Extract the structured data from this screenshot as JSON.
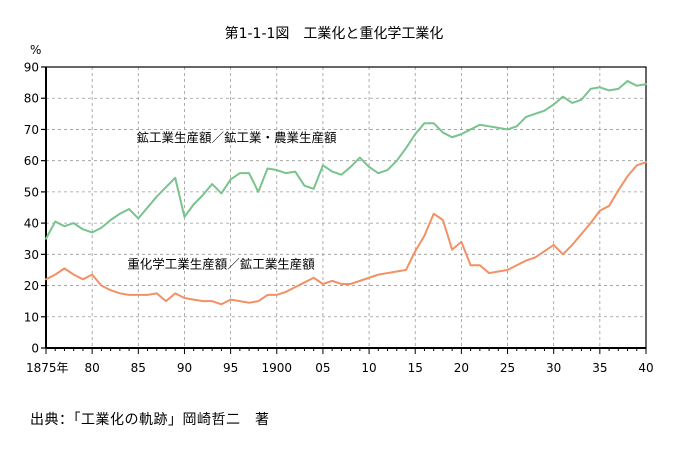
{
  "title": "第1-1-1図　工業化と重化学工業化",
  "source": "出典：「工業化の軌跡」岡崎哲二　著",
  "chart_data": {
    "type": "line",
    "title": "第1-1-1図　工業化と重化学工業化",
    "ylabel": "%",
    "xlabel": "",
    "ylim": [
      0,
      90
    ],
    "xlim": [
      1875,
      1940
    ],
    "grid": true,
    "y_ticks": [
      0,
      10,
      20,
      30,
      40,
      50,
      60,
      70,
      80,
      90
    ],
    "x_ticks": [
      {
        "x": 1875,
        "label": "1875年"
      },
      {
        "x": 1880,
        "label": "80"
      },
      {
        "x": 1885,
        "label": "85"
      },
      {
        "x": 1890,
        "label": "90"
      },
      {
        "x": 1895,
        "label": "95"
      },
      {
        "x": 1900,
        "label": "1900"
      },
      {
        "x": 1905,
        "label": "05"
      },
      {
        "x": 1910,
        "label": "10"
      },
      {
        "x": 1915,
        "label": "15"
      },
      {
        "x": 1920,
        "label": "20"
      },
      {
        "x": 1925,
        "label": "25"
      },
      {
        "x": 1930,
        "label": "30"
      },
      {
        "x": 1935,
        "label": "35"
      },
      {
        "x": 1940,
        "label": "40"
      }
    ],
    "series": [
      {
        "name": "鉱工業生産額／鉱工業・農業生産額",
        "color": "#78c48c",
        "x": [
          1875,
          1876,
          1877,
          1878,
          1879,
          1880,
          1881,
          1882,
          1883,
          1884,
          1885,
          1886,
          1887,
          1888,
          1889,
          1890,
          1891,
          1892,
          1893,
          1894,
          1895,
          1896,
          1897,
          1898,
          1899,
          1900,
          1901,
          1902,
          1903,
          1904,
          1905,
          1906,
          1907,
          1908,
          1909,
          1910,
          1911,
          1912,
          1913,
          1914,
          1915,
          1916,
          1917,
          1918,
          1919,
          1920,
          1921,
          1922,
          1923,
          1924,
          1925,
          1926,
          1927,
          1928,
          1929,
          1930,
          1931,
          1932,
          1933,
          1934,
          1935,
          1936,
          1937,
          1938,
          1939,
          1940
        ],
        "values": [
          35,
          40.5,
          39,
          40,
          38,
          37,
          38.5,
          41,
          43,
          44.5,
          41.5,
          45,
          48.5,
          51.5,
          54.5,
          42,
          46,
          49,
          52.5,
          49.5,
          54,
          56,
          56,
          50,
          57.5,
          57,
          56,
          56.5,
          52,
          51,
          58.5,
          56.5,
          55.5,
          58,
          61,
          58,
          56,
          57,
          60,
          64,
          68.5,
          72,
          72,
          69,
          67.5,
          68.5,
          70,
          71.5,
          71,
          70.5,
          70,
          71,
          74,
          75,
          76,
          78,
          80.5,
          78.5,
          79.5,
          83,
          83.5,
          82.5,
          83,
          85.5,
          84,
          84.5
        ]
      },
      {
        "name": "重化学工業生産額／鉱工業生産額",
        "color": "#f39166",
        "x": [
          1875,
          1876,
          1877,
          1878,
          1879,
          1880,
          1881,
          1882,
          1883,
          1884,
          1885,
          1886,
          1887,
          1888,
          1889,
          1890,
          1891,
          1892,
          1893,
          1894,
          1895,
          1896,
          1897,
          1898,
          1899,
          1900,
          1901,
          1902,
          1903,
          1904,
          1905,
          1906,
          1907,
          1908,
          1909,
          1910,
          1911,
          1912,
          1913,
          1914,
          1915,
          1916,
          1917,
          1918,
          1919,
          1920,
          1921,
          1922,
          1923,
          1924,
          1925,
          1926,
          1927,
          1928,
          1929,
          1930,
          1931,
          1932,
          1933,
          1934,
          1935,
          1936,
          1937,
          1938,
          1939,
          1940
        ],
        "values": [
          22,
          23.5,
          25.5,
          23.5,
          22,
          23.5,
          20,
          18.5,
          17.5,
          17,
          17,
          17,
          17.5,
          15,
          17.5,
          16,
          15.5,
          15,
          15,
          14,
          15.5,
          15,
          14.5,
          15,
          17,
          17,
          18,
          19.5,
          21,
          22.5,
          20.5,
          21.5,
          20.5,
          20.5,
          21.5,
          22.5,
          23.5,
          24,
          24.5,
          25,
          31,
          36,
          43,
          41,
          31.5,
          34,
          26.5,
          26.5,
          24,
          24.5,
          25,
          26.5,
          28,
          29,
          31,
          33,
          30,
          33,
          36.5,
          40,
          44,
          45.5,
          50.5,
          55,
          58.5,
          59.5
        ]
      }
    ],
    "annotations": [
      {
        "text": "鉱工業生産額／鉱工業・農業生産額",
        "x": 1884.8,
        "y": 66
      },
      {
        "text": "重化学工業生産額／鉱工業生産額",
        "x": 1883.8,
        "y": 25.5
      }
    ]
  }
}
